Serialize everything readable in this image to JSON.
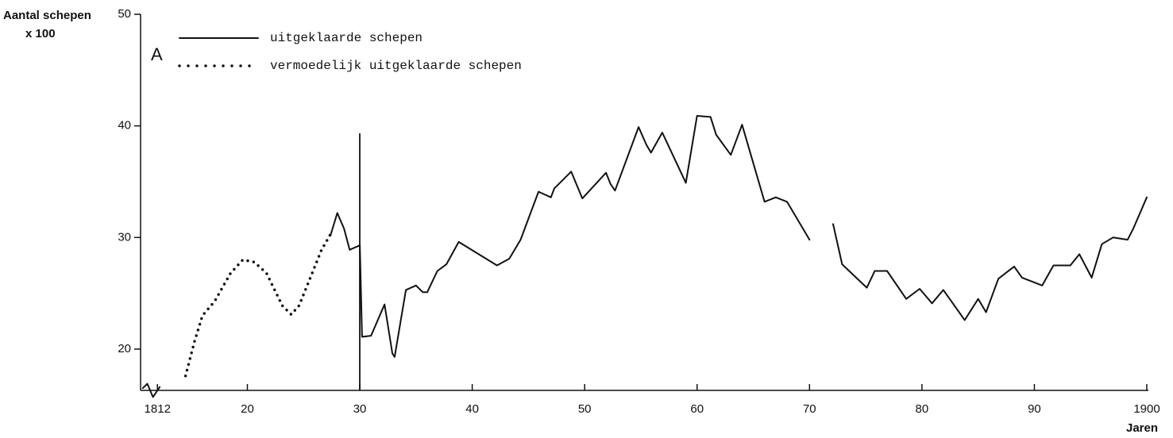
{
  "chart_data": {
    "type": "line",
    "y_label": "Aantal schepen",
    "y_unit": "x 100",
    "x_label": "Jaren",
    "annotation": "A",
    "xlim": [
      1810.5,
      1900
    ],
    "ylim": [
      16.3,
      50
    ],
    "xticks": [
      1812,
      {
        "value": 1820,
        "label": "20"
      },
      {
        "value": 1830,
        "label": "30"
      },
      {
        "value": 1840,
        "label": "40"
      },
      {
        "value": 1850,
        "label": "50"
      },
      {
        "value": 1860,
        "label": "60"
      },
      {
        "value": 1870,
        "label": "70"
      },
      {
        "value": 1880,
        "label": "80"
      },
      {
        "value": 1890,
        "label": "90"
      },
      1900
    ],
    "yticks": [
      20,
      30,
      40,
      50
    ],
    "series": [
      {
        "name": "uitgeklaarde schepen",
        "color": "#111111",
        "style": "solid",
        "x": [
          1810.7,
          1811.1,
          1811.6,
          1812.2,
          null,
          1827.4,
          1828.0,
          1828.6,
          1829.1,
          1830.0,
          1830.2,
          1831.0,
          1832.2,
          1832.9,
          1833.1,
          1834.1,
          1835.0,
          1835.6,
          1836.0,
          1836.9,
          1837.7,
          1838.8,
          1842.2,
          1843.3,
          1844.3,
          1845.9,
          1847.0,
          1847.3,
          1848.8,
          1849.8,
          1851.9,
          1852.3,
          1852.7,
          1854.8,
          1855.5,
          1855.9,
          1856.9,
          1859.0,
          1860.0,
          1861.2,
          1861.7,
          1863.0,
          1864.0,
          1866.0,
          1867.0,
          1868.0,
          1870.0,
          null,
          1872.1,
          1872.9,
          1875.1,
          1875.8,
          1876.9,
          1878.6,
          1879.8,
          1880.9,
          1881.9,
          1883.8,
          1885.0,
          1885.7,
          1886.8,
          1888.2,
          1888.9,
          1890.7,
          1891.7,
          1893.2,
          1894.0,
          1895.1,
          1896.0,
          1897.0,
          1898.3,
          1898.8,
          1900.0
        ],
        "values": [
          16.5,
          16.9,
          15.7,
          16.6,
          null,
          30.2,
          32.2,
          30.8,
          28.9,
          29.3,
          21.1,
          21.2,
          24.0,
          19.6,
          19.3,
          25.3,
          25.7,
          25.1,
          25.1,
          27.0,
          27.6,
          29.6,
          27.5,
          28.1,
          29.8,
          34.1,
          33.6,
          34.4,
          35.9,
          33.5,
          35.8,
          34.8,
          34.2,
          39.9,
          38.3,
          37.6,
          39.4,
          34.9,
          40.9,
          40.8,
          39.2,
          37.4,
          40.1,
          33.2,
          33.6,
          33.2,
          29.8,
          null,
          31.2,
          27.6,
          25.5,
          27.0,
          27.0,
          24.5,
          25.4,
          24.1,
          25.3,
          22.6,
          24.5,
          23.3,
          26.3,
          27.4,
          26.4,
          25.7,
          27.5,
          27.5,
          28.5,
          26.4,
          29.4,
          30.0,
          29.8,
          30.8,
          33.6
        ]
      },
      {
        "name": "vermoedelijk uitgeklaarde schepen",
        "color": "#111111",
        "style": "dotted",
        "x": [
          1814.5,
          1815.3,
          1816.0,
          1817.1,
          1818.5,
          1819.6,
          1820.6,
          1821.7,
          1823.1,
          1823.9,
          1824.6,
          1825.6,
          1826.6,
          1827.4
        ],
        "values": [
          17.6,
          20.7,
          23.0,
          24.3,
          26.8,
          28.0,
          27.8,
          26.8,
          23.9,
          23.1,
          23.9,
          26.4,
          28.9,
          30.3
        ]
      }
    ]
  }
}
